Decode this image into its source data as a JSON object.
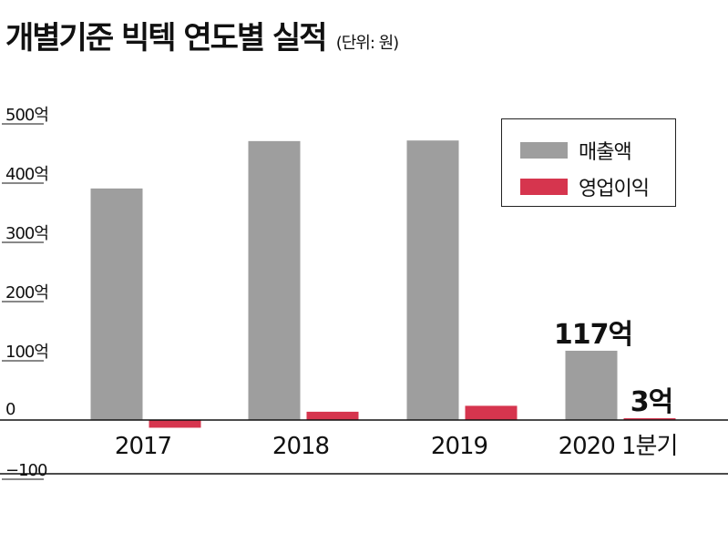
{
  "title": "개별기준 빅텍 연도별 실적",
  "unit": "(단위: 원)",
  "colors": {
    "revenue": "#9e9e9e",
    "operating_profit": "#d6354e",
    "axis": "#111111"
  },
  "chart_data": {
    "type": "bar",
    "categories": [
      "2017",
      "2018",
      "2019",
      "2020 1분기"
    ],
    "series": [
      {
        "name": "매출액",
        "values": [
          391,
          471,
          472,
          117
        ]
      },
      {
        "name": "영업이익",
        "values": [
          -13,
          14,
          24,
          3
        ]
      }
    ],
    "ylim": [
      -100,
      500
    ],
    "yticks": [
      500,
      400,
      300,
      200,
      100,
      0,
      -100
    ],
    "ytick_labels": [
      "500억",
      "400억",
      "300억",
      "200억",
      "100억",
      "0",
      "−100"
    ],
    "data_labels": [
      {
        "series": 0,
        "index": 3,
        "text": "117억"
      },
      {
        "series": 1,
        "index": 3,
        "text": "3억"
      }
    ],
    "legend_position": "top-right"
  }
}
